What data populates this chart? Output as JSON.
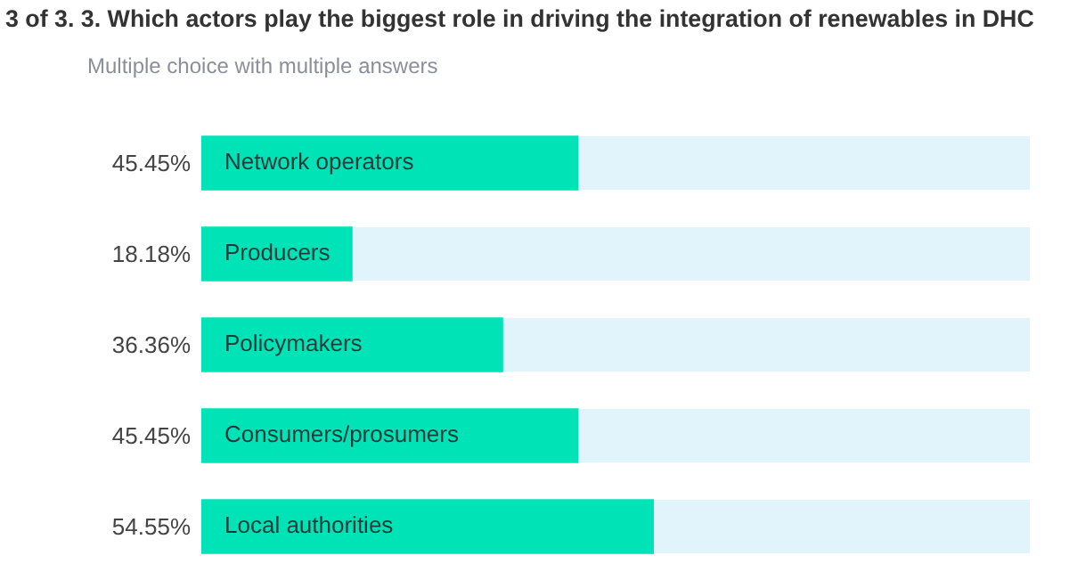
{
  "chart_data": {
    "type": "bar",
    "orientation": "horizontal",
    "title": "3 of 3. 3. Which actors play the biggest role in driving the integration of renewables in DHC",
    "subtitle": "Multiple choice with multiple answers",
    "categories": [
      "Network operators",
      "Producers",
      "Policymakers",
      "Consumers/prosumers",
      "Local authorities"
    ],
    "values": [
      45.45,
      18.18,
      36.36,
      45.45,
      54.55
    ],
    "value_labels": [
      "45.45%",
      "18.18%",
      "36.36%",
      "45.45%",
      "54.55%"
    ],
    "color": "#00e3b6",
    "xlim": [
      0,
      100
    ],
    "tick_labels": false,
    "legend": false
  }
}
